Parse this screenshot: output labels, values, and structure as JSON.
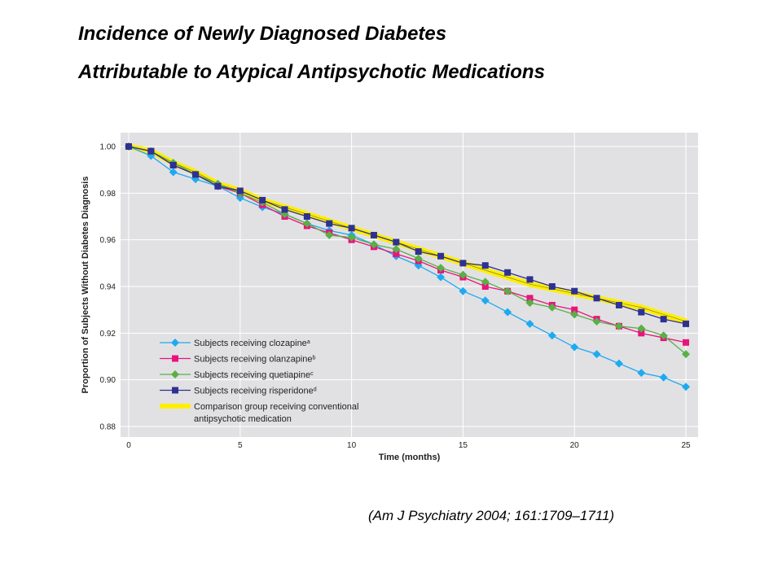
{
  "slide": {
    "title_line_1": "Incidence of Newly Diagnosed Diabetes",
    "title_line_2": "Attributable to Atypical Antipsychotic Medications",
    "citation": "(Am J Psychiatry 2004; 161:1709–1711)"
  },
  "chart_data": {
    "type": "line",
    "title": "",
    "xlabel": "Time (months)",
    "ylabel": "Proportion of Subjects Without Diabetes Diagnosis",
    "xlim": [
      0,
      25
    ],
    "ylim": [
      0.88,
      1.0
    ],
    "x_ticks": [
      0,
      5,
      10,
      15,
      20,
      25
    ],
    "y_ticks": [
      0.88,
      0.9,
      0.92,
      0.94,
      0.96,
      0.98,
      1.0
    ],
    "y_tick_labels": [
      "0.88",
      "0.90",
      "0.92",
      "0.94",
      "0.96",
      "0.98",
      "1.00"
    ],
    "grid": true,
    "legend_position": "bottom-left",
    "plot_background": "#e1e1e4",
    "x": [
      0,
      1,
      2,
      3,
      4,
      5,
      6,
      7,
      8,
      9,
      10,
      11,
      12,
      13,
      14,
      15,
      16,
      17,
      18,
      19,
      20,
      21,
      22,
      23,
      24,
      25
    ],
    "series": [
      {
        "name": "Comparison group receiving conventional antipsychotic medication",
        "legend_lines": [
          "Comparison group receiving conventional",
          "antipsychotic medication"
        ],
        "color": "#ffee00",
        "marker": "none",
        "values": [
          1.0,
          0.998,
          0.993,
          0.989,
          0.984,
          0.981,
          0.977,
          0.974,
          0.971,
          0.968,
          0.965,
          0.962,
          0.959,
          0.956,
          0.953,
          0.95,
          0.947,
          0.944,
          0.941,
          0.939,
          0.937,
          0.935,
          0.933,
          0.931,
          0.928,
          0.925
        ]
      },
      {
        "name": "Subjects receiving clozapine",
        "superscript": "a",
        "color": "#1eaaf0",
        "marker": "diamond",
        "values": [
          1.0,
          0.996,
          0.989,
          0.986,
          0.983,
          0.978,
          0.974,
          0.971,
          0.967,
          0.964,
          0.962,
          0.958,
          0.953,
          0.949,
          0.944,
          0.938,
          0.934,
          0.929,
          0.924,
          0.919,
          0.914,
          0.911,
          0.907,
          0.903,
          0.901,
          0.897
        ]
      },
      {
        "name": "Subjects receiving olanzapine",
        "superscript": "b",
        "color": "#e8147d",
        "marker": "square",
        "values": [
          1.0,
          0.998,
          0.992,
          0.988,
          0.983,
          0.98,
          0.975,
          0.97,
          0.966,
          0.963,
          0.96,
          0.957,
          0.954,
          0.951,
          0.947,
          0.944,
          0.94,
          0.938,
          0.935,
          0.932,
          0.93,
          0.926,
          0.923,
          0.92,
          0.918,
          0.916
        ]
      },
      {
        "name": "Subjects receiving quetiapine",
        "superscript": "c",
        "color": "#5aaf46",
        "marker": "diamond",
        "values": [
          1.0,
          0.998,
          0.993,
          0.988,
          0.984,
          0.98,
          0.976,
          0.971,
          0.967,
          0.962,
          0.961,
          0.958,
          0.956,
          0.952,
          0.948,
          0.945,
          0.942,
          0.938,
          0.933,
          0.931,
          0.928,
          0.925,
          0.923,
          0.922,
          0.919,
          0.911
        ]
      },
      {
        "name": "Subjects receiving risperidone",
        "superscript": "d",
        "color": "#2e3192",
        "marker": "square",
        "values": [
          1.0,
          0.998,
          0.992,
          0.988,
          0.983,
          0.981,
          0.977,
          0.973,
          0.97,
          0.967,
          0.965,
          0.962,
          0.959,
          0.955,
          0.953,
          0.95,
          0.949,
          0.946,
          0.943,
          0.94,
          0.938,
          0.935,
          0.932,
          0.929,
          0.926,
          0.924
        ]
      }
    ]
  }
}
